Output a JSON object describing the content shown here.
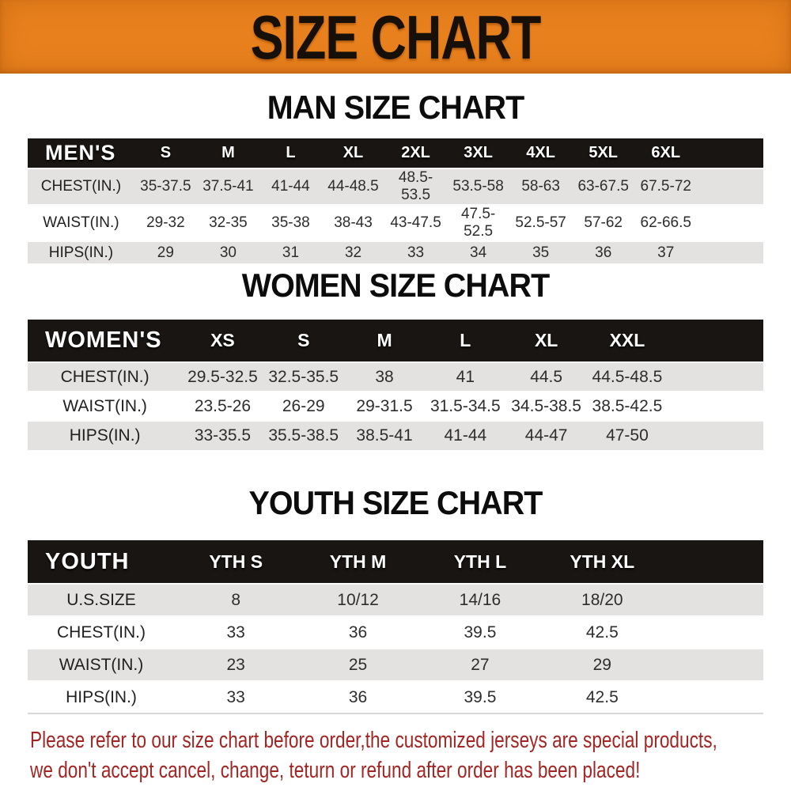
{
  "banner": {
    "title": "SIZE CHART",
    "bg_color": "#e8811d",
    "text_color": "#161008"
  },
  "sections": [
    {
      "heading": "MAN SIZE CHART",
      "label": "MEN'S",
      "sizes": [
        "S",
        "M",
        "L",
        "XL",
        "2XL",
        "3XL",
        "4XL",
        "5XL",
        "6XL"
      ],
      "rows": [
        {
          "label": "CHEST(IN.)",
          "values": [
            "35-37.5",
            "37.5-41",
            "41-44",
            "44-48.5",
            "48.5-53.5",
            "53.5-58",
            "58-63",
            "63-67.5",
            "67.5-72"
          ]
        },
        {
          "label": "WAIST(IN.)",
          "values": [
            "29-32",
            "32-35",
            "35-38",
            "38-43",
            "43-47.5",
            "47.5-52.5",
            "52.5-57",
            "57-62",
            "62-66.5"
          ]
        },
        {
          "label": "HIPS(IN.)",
          "values": [
            "29",
            "30",
            "31",
            "32",
            "33",
            "34",
            "35",
            "36",
            "37"
          ]
        }
      ]
    },
    {
      "heading": "WOMEN SIZE CHART",
      "label": "WOMEN'S",
      "sizes": [
        "XS",
        "S",
        "M",
        "L",
        "XL",
        "XXL"
      ],
      "rows": [
        {
          "label": "CHEST(IN.)",
          "values": [
            "29.5-32.5",
            "32.5-35.5",
            "38",
            "41",
            "44.5",
            "44.5-48.5"
          ]
        },
        {
          "label": "WAIST(IN.)",
          "values": [
            "23.5-26",
            "26-29",
            "29-31.5",
            "31.5-34.5",
            "34.5-38.5",
            "38.5-42.5"
          ]
        },
        {
          "label": "HIPS(IN.)",
          "values": [
            "33-35.5",
            "35.5-38.5",
            "38.5-41",
            "41-44",
            "44-47",
            "47-50"
          ]
        }
      ]
    },
    {
      "heading": "YOUTH SIZE CHART",
      "label": "YOUTH",
      "sizes": [
        "YTH S",
        "YTH M",
        "YTH L",
        "YTH XL"
      ],
      "rows": [
        {
          "label": "U.S.SIZE",
          "values": [
            "8",
            "10/12",
            "14/16",
            "18/20"
          ]
        },
        {
          "label": "CHEST(IN.)",
          "values": [
            "33",
            "36",
            "39.5",
            "42.5"
          ]
        },
        {
          "label": "WAIST(IN.)",
          "values": [
            "23",
            "25",
            "27",
            "29"
          ]
        },
        {
          "label": "HIPS(IN.)",
          "values": [
            "33",
            "36",
            "39.5",
            "42.5"
          ]
        }
      ]
    }
  ],
  "footer": {
    "line1": "Please refer to our size chart before order,the customized jerseys are special products,",
    "line2": "we don't accept cancel, change, teturn or refund after order has been placed!",
    "text_color": "#a32523"
  },
  "table_colors": {
    "header_bar": "#191512",
    "gray_row": "#e3e2e0",
    "white_row": "#ffffff"
  }
}
